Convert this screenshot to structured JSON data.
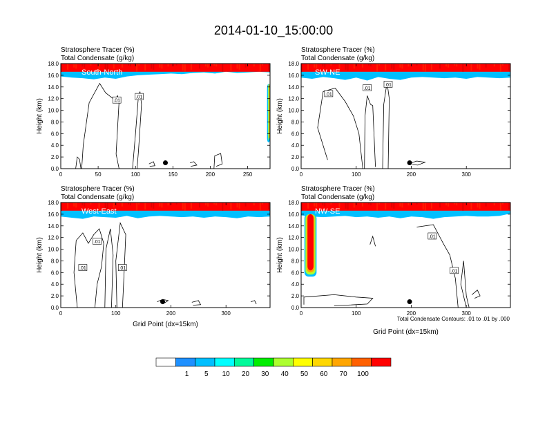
{
  "figure": {
    "title": "2014-01-10_15:00:00"
  },
  "chart_data": [
    {
      "type": "heatmap",
      "panel_label": "South-North",
      "header_line1": "Stratosphere Tracer   (%)",
      "header_line2": "Total Condensate   (g/kg)",
      "ylabel": "Height (km)",
      "xlabel": "",
      "xlim": [
        0,
        280
      ],
      "ylim": [
        0,
        18
      ],
      "xticks": [
        "0",
        "50",
        "100",
        "150",
        "200",
        "250"
      ],
      "xtick_values": [
        0,
        50,
        100,
        150,
        200,
        250
      ],
      "yticks": [
        "0.0",
        "2.0",
        "4.0",
        "6.0",
        "8.0",
        "10.0",
        "12.0",
        "14.0",
        "16.0",
        "18.0"
      ],
      "tropopause_km": [
        15.8,
        15.6,
        15.5,
        15.3,
        15.6,
        15.4,
        15.8,
        16.0,
        16.1,
        16.2,
        16.3,
        16.2,
        16.4,
        16.5,
        16.3,
        16.6,
        16.4,
        16.5,
        16.6,
        16.5
      ],
      "right_plume": {
        "x0": 276,
        "x1": 280,
        "y0": 4.5,
        "y1": 14.5
      },
      "marker": {
        "x": 140,
        "y": 1.0
      },
      "contour_labels": [
        {
          "x": 75,
          "y": 11.7,
          "text": ".01"
        },
        {
          "x": 105,
          "y": 12.3,
          "text": ".01"
        }
      ],
      "contours": [
        [
          [
            20,
            0
          ],
          [
            22,
            2
          ],
          [
            25,
            1.6
          ],
          [
            27,
            0
          ]
        ],
        [
          [
            28,
            0
          ],
          [
            30,
            4.0
          ],
          [
            38,
            11.3
          ],
          [
            52,
            14.6
          ],
          [
            60,
            13.0
          ],
          [
            72,
            11.8
          ],
          [
            76,
            12.5
          ],
          [
            78,
            11.5
          ],
          [
            74,
            2.5
          ],
          [
            78,
            0
          ]
        ],
        [
          [
            96,
            0
          ],
          [
            100,
            6
          ],
          [
            104,
            12.5
          ],
          [
            106,
            13.2
          ],
          [
            108,
            11
          ],
          [
            104,
            3
          ],
          [
            102,
            0
          ]
        ],
        [
          [
            205,
            0
          ],
          [
            206,
            2.2
          ],
          [
            214,
            2.6
          ],
          [
            216,
            0.8
          ],
          [
            208,
            0.4
          ]
        ],
        [
          [
            173,
            1.0
          ],
          [
            178,
            1.2
          ],
          [
            182,
            0.6
          ],
          [
            174,
            0.4
          ]
        ],
        [
          [
            118,
            0.8
          ],
          [
            124,
            1.2
          ],
          [
            126,
            0.5
          ],
          [
            119,
            0.4
          ]
        ]
      ]
    },
    {
      "type": "heatmap",
      "panel_label": "SW-NE",
      "header_line1": "Stratosphere Tracer   (%)",
      "header_line2": "Total Condensate   (g/kg)",
      "ylabel": "Height (km)",
      "xlabel": "",
      "xlim": [
        0,
        380
      ],
      "ylim": [
        0,
        18
      ],
      "xticks": [
        "0",
        "100",
        "200",
        "300"
      ],
      "xtick_values": [
        0,
        100,
        200,
        300
      ],
      "yticks": [
        "0.0",
        "2.0",
        "4.0",
        "6.0",
        "8.0",
        "10.0",
        "12.0",
        "14.0",
        "16.0",
        "18.0"
      ],
      "tropopause_km": [
        15.6,
        15.4,
        15.7,
        15.5,
        15.2,
        15.6,
        15.1,
        15.7,
        15.4,
        15.2,
        15.6,
        15.7,
        15.6,
        15.5,
        15.6,
        15.4,
        15.7,
        15.6,
        15.5,
        15.6
      ],
      "marker": {
        "x": 197,
        "y": 1.0
      },
      "contour_labels": [
        {
          "x": 50,
          "y": 12.8,
          "text": ".01"
        },
        {
          "x": 120,
          "y": 13.8,
          "text": ".01"
        },
        {
          "x": 158,
          "y": 14.4,
          "text": ".01"
        }
      ],
      "contours": [
        [
          [
            48,
            1.5
          ],
          [
            30,
            7
          ],
          [
            40,
            13.2
          ],
          [
            62,
            13.8
          ],
          [
            80,
            11.5
          ],
          [
            95,
            9
          ],
          [
            105,
            6
          ],
          [
            112,
            0
          ]
        ],
        [
          [
            115,
            0
          ],
          [
            116,
            9
          ],
          [
            120,
            12.5
          ],
          [
            126,
            11
          ],
          [
            130,
            10.8
          ],
          [
            135,
            0.3
          ]
        ],
        [
          [
            148,
            0
          ],
          [
            150,
            11
          ],
          [
            156,
            14.8
          ],
          [
            160,
            12
          ],
          [
            158,
            0
          ]
        ],
        [
          [
            200,
            1.0
          ],
          [
            210,
            1.3
          ],
          [
            225,
            1.1
          ],
          [
            212,
            0.6
          ],
          [
            202,
            0.7
          ]
        ]
      ]
    },
    {
      "type": "heatmap",
      "panel_label": "West-East",
      "header_line1": "Stratosphere Tracer   (%)",
      "header_line2": "Total Condensate   (g/kg)",
      "ylabel": "Height (km)",
      "xlabel": "Grid Point (dx=15km)",
      "xlim": [
        0,
        380
      ],
      "ylim": [
        0,
        18
      ],
      "xticks": [
        "0",
        "100",
        "200",
        "300"
      ],
      "xtick_values": [
        0,
        100,
        200,
        300
      ],
      "yticks": [
        "0.0",
        "2.0",
        "4.0",
        "6.0",
        "8.0",
        "10.0",
        "12.0",
        "14.0",
        "16.0",
        "18.0"
      ],
      "tropopause_km": [
        15.6,
        15.4,
        15.2,
        15.6,
        15.5,
        15.4,
        15.7,
        15.3,
        15.6,
        15.7,
        15.6,
        15.5,
        15.6,
        15.4,
        15.6,
        15.5,
        15.3,
        15.6,
        15.5,
        15.6
      ],
      "marker": {
        "x": 185,
        "y": 1.0
      },
      "contour_labels": [
        {
          "x": 40,
          "y": 6.8,
          "text": ".01"
        },
        {
          "x": 66,
          "y": 11.3,
          "text": ".01"
        },
        {
          "x": 112,
          "y": 6.8,
          "text": ".01"
        }
      ],
      "contours": [
        [
          [
            30,
            0
          ],
          [
            24,
            6
          ],
          [
            28,
            11.5
          ],
          [
            40,
            12.8
          ],
          [
            50,
            11
          ],
          [
            60,
            12.5
          ],
          [
            70,
            13.5
          ],
          [
            78,
            11
          ],
          [
            74,
            7
          ],
          [
            66,
            4
          ],
          [
            62,
            0
          ]
        ],
        [
          [
            80,
            0
          ],
          [
            82,
            10
          ],
          [
            90,
            13.5
          ],
          [
            95,
            9
          ],
          [
            92,
            0
          ]
        ],
        [
          [
            102,
            0
          ],
          [
            100,
            8
          ],
          [
            108,
            14.5
          ],
          [
            118,
            12.5
          ],
          [
            115,
            6
          ],
          [
            112,
            0
          ]
        ],
        [
          [
            175,
            1.0
          ],
          [
            185,
            1.4
          ],
          [
            195,
            1.2
          ],
          [
            185,
            0.6
          ]
        ],
        [
          [
            238,
            0.9
          ],
          [
            250,
            1.2
          ],
          [
            254,
            0.5
          ],
          [
            240,
            0.4
          ]
        ],
        [
          [
            345,
            1.0
          ],
          [
            352,
            1.2
          ],
          [
            355,
            0.6
          ]
        ]
      ]
    },
    {
      "type": "heatmap",
      "panel_label": "NW-SE",
      "header_line1": "Stratosphere Tracer   (%)",
      "header_line2": "Total Condensate   (g/kg)",
      "ylabel": "Height (km)",
      "xlabel": "Grid Point (dx=15km)",
      "xlim": [
        0,
        380
      ],
      "ylim": [
        0,
        18
      ],
      "xticks": [
        "0",
        "100",
        "200",
        "300"
      ],
      "xtick_values": [
        0,
        100,
        200,
        300
      ],
      "yticks": [
        "0.0",
        "2.0",
        "4.0",
        "6.0",
        "8.0",
        "10.0",
        "12.0",
        "14.0",
        "16.0",
        "18.0"
      ],
      "tropopause_km": [
        15.8,
        15.6,
        15.5,
        15.6,
        15.7,
        15.5,
        15.6,
        15.4,
        15.6,
        15.3,
        15.6,
        15.5,
        15.2,
        15.5,
        15.6,
        15.7,
        15.6,
        15.6,
        15.7,
        16.1
      ],
      "left_plume": {
        "x0": 6,
        "x1": 28,
        "y0": 5.3,
        "y1": 16.0
      },
      "marker": {
        "x": 197,
        "y": 1.0
      },
      "contour_labels": [
        {
          "x": 238,
          "y": 12.2,
          "text": ".01"
        },
        {
          "x": 278,
          "y": 6.3,
          "text": ".01"
        }
      ],
      "contours": [
        [
          [
            5,
            0.5
          ],
          [
            5,
            1.8
          ],
          [
            60,
            2.2
          ],
          [
            100,
            1.8
          ],
          [
            130,
            1.6
          ],
          [
            120,
            0.6
          ],
          [
            60,
            0.3
          ]
        ],
        [
          [
            210,
            13.8
          ],
          [
            240,
            14.2
          ],
          [
            258,
            11
          ],
          [
            270,
            9
          ],
          [
            280,
            5
          ],
          [
            285,
            0
          ]
        ],
        [
          [
            300,
            0
          ],
          [
            290,
            4
          ],
          [
            295,
            8
          ],
          [
            300,
            2
          ],
          [
            305,
            0
          ]
        ],
        [
          [
            125,
            10.8
          ],
          [
            130,
            12.2
          ],
          [
            135,
            10.5
          ]
        ],
        [
          [
            310,
            2.2
          ],
          [
            320,
            3.0
          ],
          [
            325,
            2.0
          ],
          [
            315,
            1.6
          ]
        ]
      ]
    }
  ],
  "footnote": "Total Condensate Contours: .01 to .01 by .000",
  "colorbar": {
    "colors": [
      "#ffffff",
      "#1e90ff",
      "#00bfff",
      "#00ffff",
      "#00fa9a",
      "#00ee00",
      "#adff2f",
      "#ffff00",
      "#ffd700",
      "#ffa500",
      "#ff6000",
      "#ff0000"
    ],
    "labels": [
      "1",
      "5",
      "10",
      "20",
      "30",
      "40",
      "50",
      "60",
      "70",
      "100"
    ]
  }
}
